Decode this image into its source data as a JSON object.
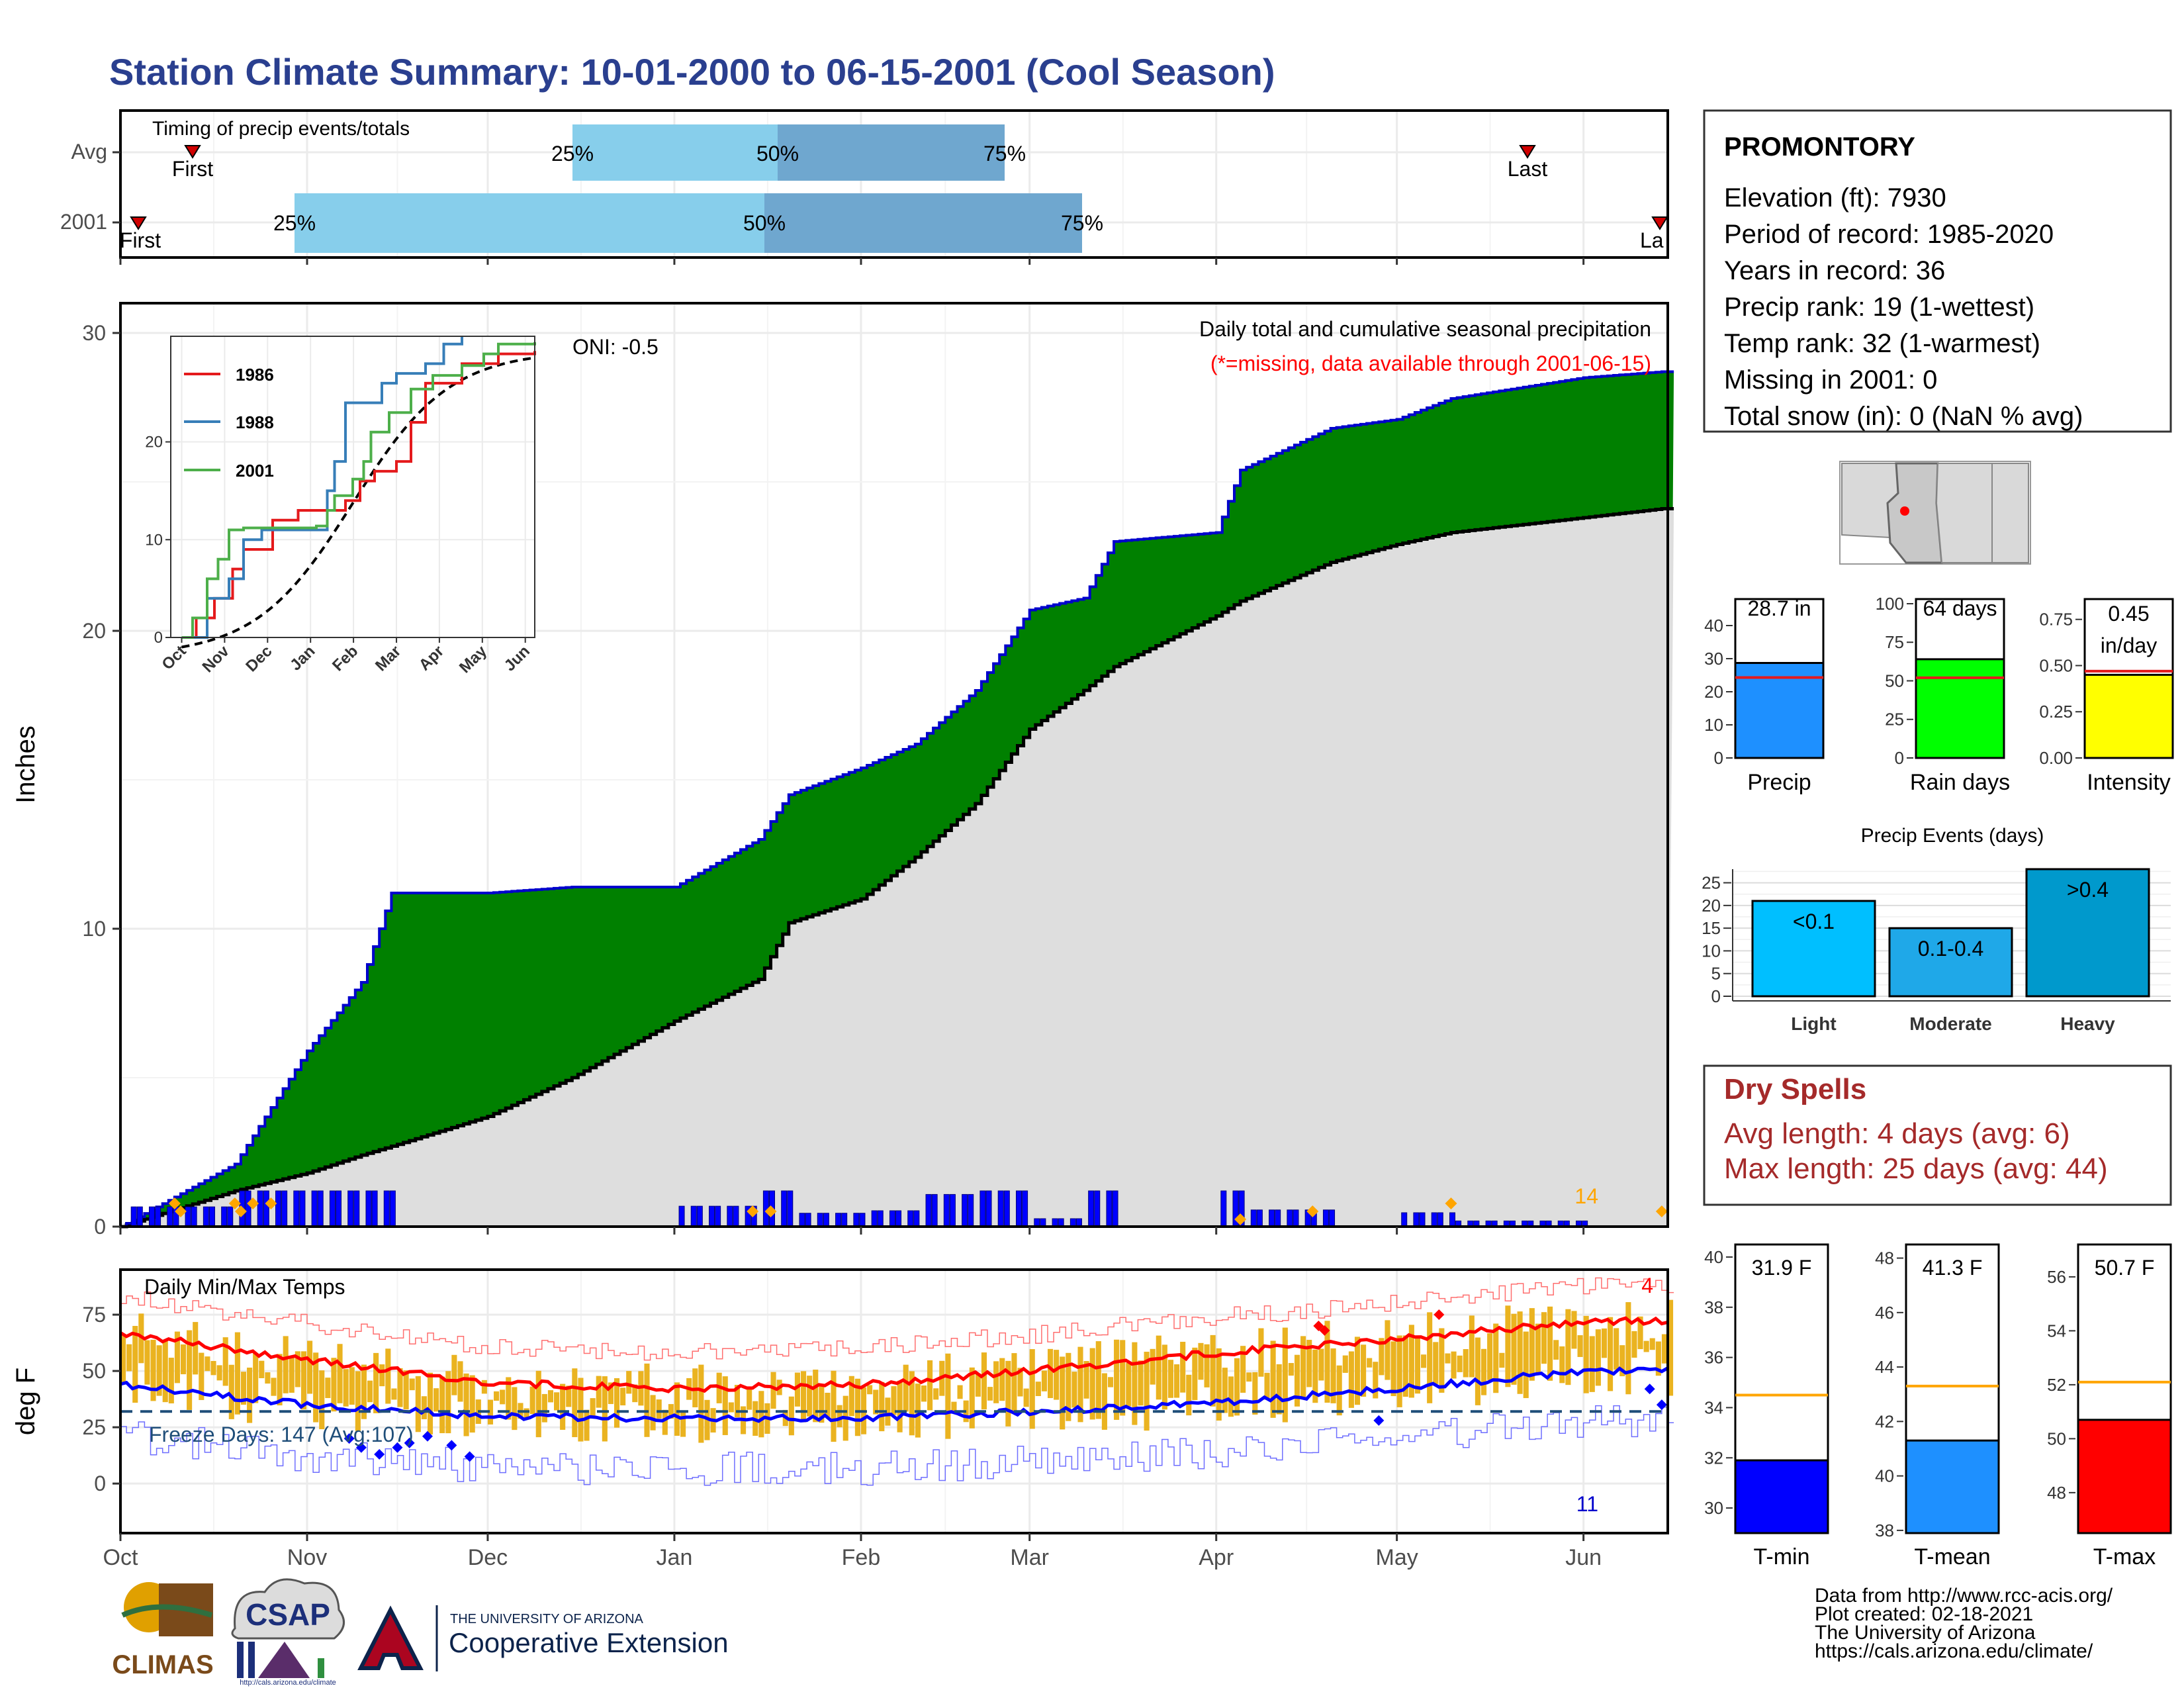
{
  "title": "Station Climate Summary: 10-01-2000 to 06-15-2001 (Cool Season)",
  "timing": {
    "title": "Timing of precip events/totals",
    "rows": [
      {
        "label": "Avg",
        "first": "Oct 14",
        "q25": "Dec 15",
        "q50": "Jan 18",
        "q75": "Feb 25",
        "last": "May 22",
        "first_label": "First",
        "last_label": "Last"
      },
      {
        "label": "2001",
        "first": "Oct 4",
        "q25": "Oct 30",
        "q50": "Jan 16",
        "q75": "Mar 1",
        "last": "Jun 15",
        "first_label": "First",
        "last_label": "La"
      }
    ],
    "pct_labels": [
      "25%",
      "50%",
      "75%"
    ]
  },
  "precip_panel": {
    "title": "Daily total and cumulative seasonal precipitation",
    "missing_note": "(*=missing, data available through 2001-06-15)",
    "oni": "ONI: -0.5",
    "ylabel": "Inches",
    "ylim": [
      0,
      31
    ],
    "yticks": [
      0,
      10,
      20,
      30
    ],
    "count_label": "14"
  },
  "inset": {
    "xticks": [
      "Oct",
      "Nov",
      "Dec",
      "Jan",
      "Feb",
      "Mar",
      "Apr",
      "May",
      "Jun"
    ],
    "yticks": [
      0,
      10,
      20
    ],
    "legend": [
      {
        "name": "1986",
        "color": "#e41a1c"
      },
      {
        "name": "1988",
        "color": "#377eb8"
      },
      {
        "name": "2001",
        "color": "#4daf4a"
      }
    ]
  },
  "temp_panel": {
    "title": "Daily Min/Max Temps",
    "ylabel": "deg F",
    "yticks": [
      0,
      25,
      50,
      75
    ],
    "freeze_label": "Freeze Days: 147 (Avg:107)",
    "max_count": "4",
    "min_count": "11"
  },
  "x_months": [
    "Oct",
    "Nov",
    "Dec",
    "Jan",
    "Feb",
    "Mar",
    "Apr",
    "May",
    "Jun"
  ],
  "station": {
    "name": "PROMONTORY",
    "lines": [
      "Elevation (ft): 7930",
      "Period of record: 1985-2020",
      "Years in record: 36",
      "Precip rank: 19 (1-wettest)",
      "Temp rank: 32 (1-warmest)",
      "Missing in 2001: 0",
      "Total snow (in): 0 (NaN % avg)"
    ]
  },
  "summary_bars": [
    {
      "label": "Precip",
      "value_text": "28.7 in",
      "value": 28.7,
      "avg": 24.3,
      "color": "#1e90ff",
      "ymax": 48,
      "yticks": [
        0,
        10,
        20,
        30,
        40
      ]
    },
    {
      "label": "Rain days",
      "value_text": "64 days",
      "value": 64,
      "avg": 52,
      "color": "#00ff00",
      "ymax": 103,
      "yticks": [
        0,
        25,
        50,
        75,
        100
      ]
    },
    {
      "label": "Intensity",
      "value_text_1": "0.45",
      "value_text_2": "in/day",
      "value": 0.45,
      "avg": 0.47,
      "color": "#ffff00",
      "ymax": 0.86,
      "yticks": [
        "0.00",
        "0.25",
        "0.50",
        "0.75"
      ]
    }
  ],
  "events": {
    "title": "Precip Events (days)",
    "categories": [
      "Light",
      "Moderate",
      "Heavy"
    ],
    "labels": [
      "<0.1",
      "0.1-0.4",
      ">0.4"
    ],
    "values": [
      21,
      15,
      28
    ],
    "colors": [
      "#00bfff",
      "#1fa8e8",
      "#0099cc"
    ],
    "yticks": [
      0,
      5,
      10,
      15,
      20,
      25
    ]
  },
  "dry_spells": {
    "title": "Dry Spells",
    "avg_line": "Avg length: 4 days (avg: 6)",
    "max_line": "Max length: 25 days (avg: 44)"
  },
  "temp_bars": [
    {
      "label": "T-min",
      "value_text": "31.9 F",
      "value": 31.9,
      "avg": 34.5,
      "color": "#0000ff",
      "ymin": 29,
      "ymax": 40.5,
      "yticks": [
        30,
        32,
        34,
        36,
        38,
        40
      ]
    },
    {
      "label": "T-mean",
      "value_text": "41.3 F",
      "value": 41.3,
      "avg": 43.3,
      "color": "#1e90ff",
      "ymin": 37.9,
      "ymax": 48.5,
      "yticks": [
        38,
        40,
        42,
        44,
        46,
        48
      ]
    },
    {
      "label": "T-max",
      "value_text": "50.7 F",
      "value": 50.7,
      "avg": 52.1,
      "color": "#ff0000",
      "ymin": 46.5,
      "ymax": 57.2,
      "yticks": [
        48,
        50,
        52,
        54,
        56
      ]
    }
  ],
  "footer": {
    "lines": [
      "Data from http://www.rcc-acis.org/",
      "Plot created: 02-18-2021",
      "The University of Arizona",
      "https://cals.arizona.edu/climate/"
    ],
    "climas": "CLIMAS",
    "csap": "CSAP",
    "csap_url": "http://cals.arizona.edu/climate",
    "ua_small": "THE UNIVERSITY OF ARIZONA",
    "ua_big": "Cooperative Extension"
  },
  "chart_data": {
    "type": "area",
    "title": "Daily total and cumulative seasonal precipitation",
    "ylabel": "Inches",
    "ylim": [
      0,
      31
    ],
    "x": [
      "2000-10-01",
      "2000-10-20",
      "2000-11-01",
      "2000-11-10",
      "2000-11-15",
      "2000-12-01",
      "2000-12-15",
      "2001-01-01",
      "2001-01-15",
      "2001-01-20",
      "2001-02-01",
      "2001-02-10",
      "2001-02-20",
      "2001-03-01",
      "2001-03-10",
      "2001-03-15",
      "2001-04-01",
      "2001-04-05",
      "2001-04-20",
      "2001-05-01",
      "2001-05-10",
      "2001-06-01",
      "2001-06-14"
    ],
    "series": [
      {
        "name": "2001",
        "values": [
          0.0,
          2.1,
          5.9,
          8.2,
          11.2,
          11.2,
          11.4,
          11.4,
          13.0,
          14.5,
          15.4,
          16.2,
          18.0,
          20.7,
          21.1,
          23.0,
          23.3,
          25.4,
          26.8,
          27.1,
          27.8,
          28.5,
          28.7
        ]
      },
      {
        "name": "Avg",
        "values": [
          0.0,
          1.2,
          1.8,
          2.4,
          2.7,
          3.7,
          5.0,
          6.9,
          8.3,
          10.2,
          11.0,
          12.4,
          14.2,
          16.7,
          18.0,
          18.8,
          20.5,
          21.0,
          22.3,
          22.9,
          23.3,
          23.8,
          24.1
        ]
      }
    ],
    "temps": {
      "months": [
        "Oct",
        "Nov",
        "Dec",
        "Jan",
        "Feb",
        "Mar",
        "Apr",
        "May",
        "Jun"
      ],
      "avg_max": [
        67,
        55,
        45,
        42,
        44,
        50,
        58,
        64,
        72
      ],
      "avg_min": [
        44,
        35,
        30,
        29,
        29,
        32,
        36,
        42,
        50
      ],
      "freeze_line": 32
    }
  }
}
